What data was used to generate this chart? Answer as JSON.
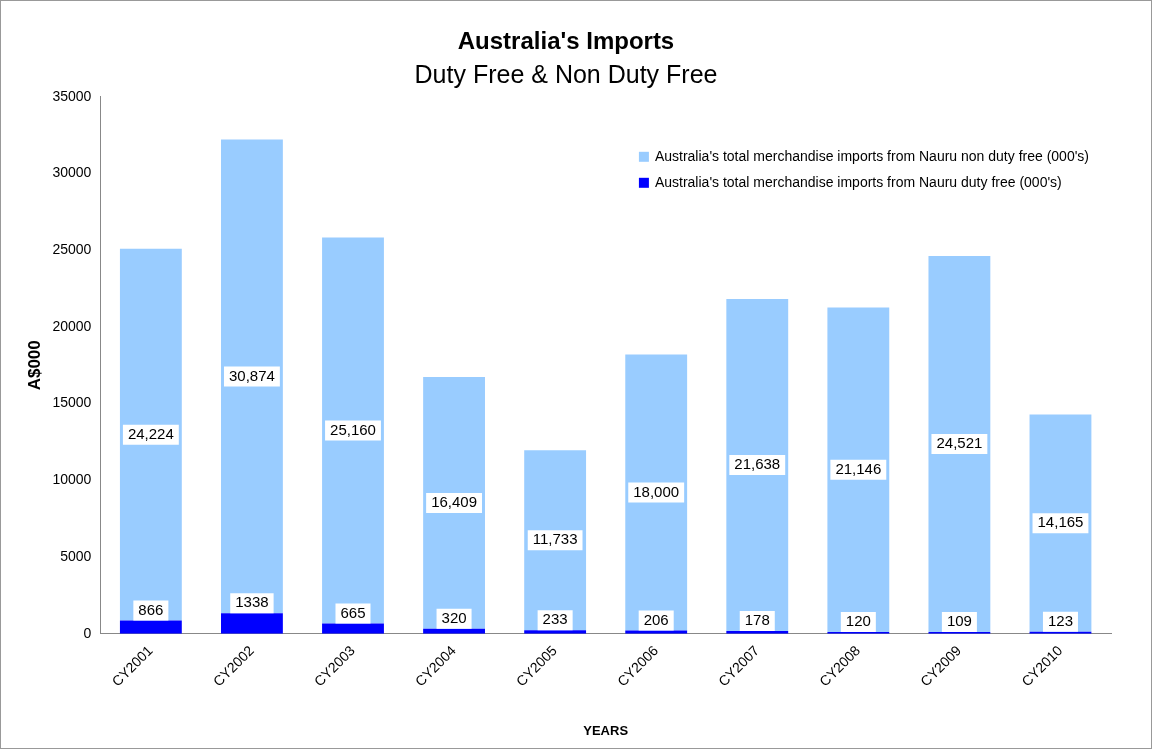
{
  "chart_data": {
    "type": "bar",
    "title": "Australia's Imports",
    "subtitle": "Duty Free & Non Duty Free",
    "xlabel": "YEARS",
    "ylabel": "A$000",
    "categories": [
      "CY2001",
      "CY2002",
      "CY2003",
      "CY2004",
      "CY2005",
      "CY2006",
      "CY2007",
      "CY2008",
      "CY2009",
      "CY2010"
    ],
    "stacked": true,
    "legend": "top right",
    "grid": false,
    "ylim": [
      0,
      35000
    ],
    "yticks": [
      0,
      5000,
      10000,
      15000,
      20000,
      25000,
      30000,
      35000
    ],
    "series": [
      {
        "name": "Australia's total merchandise imports from Nauru duty free (000's)",
        "color": "#0000ff",
        "values": [
          866,
          1338,
          665,
          320,
          233,
          206,
          178,
          120,
          109,
          123
        ],
        "value_labels": [
          "866",
          "1338",
          "665",
          "320",
          "233",
          "206",
          "178",
          "120",
          "109",
          "123"
        ]
      },
      {
        "name": "Australia's total merchandise imports from Nauru non duty free (000's)",
        "color": "#99ccff",
        "values": [
          24224,
          30874,
          25160,
          16409,
          11733,
          18000,
          21638,
          21146,
          24521,
          14165
        ],
        "value_labels": [
          "24,224",
          "30,874",
          "25,160",
          "16,409",
          "11,733",
          "18,000",
          "21,638",
          "21,146",
          "24,521",
          "14,165"
        ]
      }
    ]
  }
}
